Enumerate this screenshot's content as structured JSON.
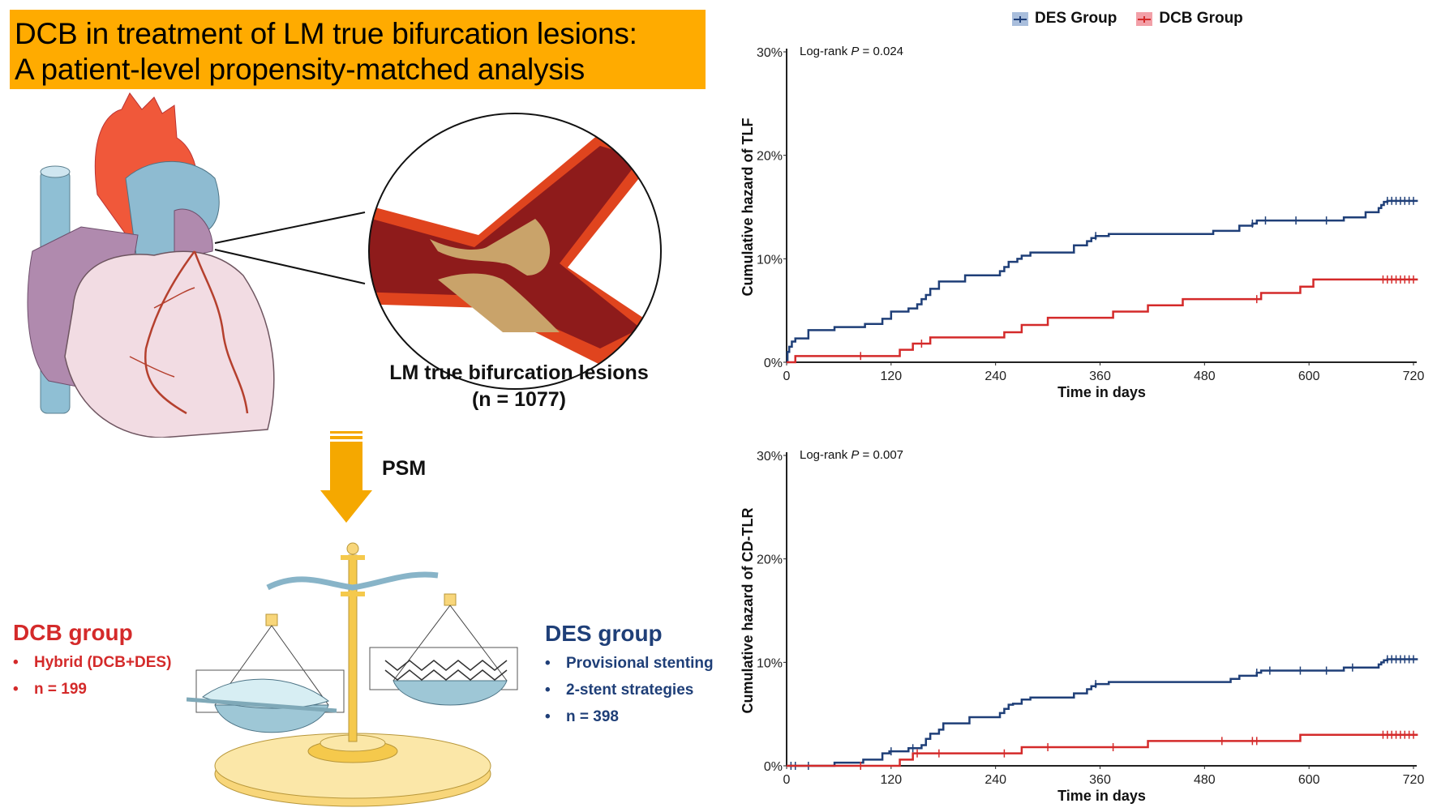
{
  "title": {
    "line1": "DCB in treatment of LM true bifurcation lesions:",
    "line2": "A patient-level propensity-matched analysis"
  },
  "colors": {
    "title_bg": "#FFAB00",
    "des": "#1F3F78",
    "dcb": "#D42A2A",
    "arrow": "#F5A800"
  },
  "illustration": {
    "lesion_label": "LM true bifurcation lesions",
    "lesion_count": "(n = 1077)",
    "arrow_label": "PSM",
    "icons": [
      "heart-icon",
      "artery-bifurcation-icon",
      "down-arrow-icon",
      "balance-scale-icon",
      "balloon-icon",
      "stent-icon"
    ]
  },
  "dcb_group": {
    "title": "DCB group",
    "items": [
      "Hybrid (DCB+DES)",
      "n = 199"
    ]
  },
  "des_group": {
    "title": "DES group",
    "items": [
      "Provisional stenting",
      "2-stent strategies",
      "n = 398"
    ]
  },
  "legend": {
    "items": [
      {
        "label": "DES Group",
        "color": "#1F3F78",
        "fill": "#A9BEDC"
      },
      {
        "label": "DCB Group",
        "color": "#D42A2A",
        "fill": "#F2A0A8"
      }
    ],
    "placement": "top-right"
  },
  "chart_data": [
    {
      "type": "line",
      "subtype": "step",
      "title": "",
      "annotation": {
        "prefix": "Log-rank ",
        "p_label": "P",
        "suffix": " = 0.024"
      },
      "xlabel": "Time in days",
      "ylabel": "Cumulative hazard of TLF",
      "xlim": [
        0,
        730
      ],
      "ylim": [
        0,
        30
      ],
      "xticks": [
        0,
        120,
        240,
        360,
        480,
        600,
        720
      ],
      "yticks": [
        0,
        10,
        20,
        30
      ],
      "ytick_labels": [
        "0%",
        "10%",
        "20%",
        "30%"
      ],
      "grid": false,
      "series": [
        {
          "name": "DES Group",
          "color": "#1F3F78",
          "x": [
            0,
            1,
            3,
            6,
            10,
            25,
            55,
            90,
            110,
            120,
            140,
            150,
            155,
            160,
            165,
            175,
            205,
            245,
            250,
            255,
            265,
            270,
            280,
            330,
            345,
            350,
            355,
            370,
            490,
            520,
            535,
            540,
            640,
            665,
            680,
            683,
            686,
            690,
            725
          ],
          "y": [
            0,
            1.0,
            1.5,
            2.0,
            2.3,
            3.1,
            3.4,
            3.7,
            4.2,
            4.9,
            5.2,
            5.6,
            6.1,
            6.5,
            7.1,
            7.8,
            8.4,
            8.8,
            9.2,
            9.7,
            10.0,
            10.3,
            10.6,
            11.3,
            11.7,
            12.0,
            12.2,
            12.4,
            12.7,
            13.2,
            13.4,
            13.7,
            14.0,
            14.5,
            14.9,
            15.2,
            15.5,
            15.6,
            15.6
          ],
          "censor_x": [
            355,
            535,
            550,
            585,
            620,
            690,
            695,
            700,
            705,
            710,
            715,
            720
          ]
        },
        {
          "name": "DCB Group",
          "color": "#D42A2A",
          "x": [
            0,
            10,
            130,
            145,
            165,
            250,
            270,
            300,
            375,
            415,
            455,
            545,
            590,
            605,
            725
          ],
          "y": [
            0,
            0.6,
            1.2,
            1.8,
            2.4,
            2.9,
            3.6,
            4.3,
            4.9,
            5.5,
            6.1,
            6.7,
            7.3,
            8.0,
            8.0
          ],
          "censor_x": [
            85,
            155,
            540,
            685,
            690,
            695,
            700,
            705,
            710,
            715,
            720
          ]
        }
      ]
    },
    {
      "type": "line",
      "subtype": "step",
      "title": "",
      "annotation": {
        "prefix": "Log-rank ",
        "p_label": "P",
        "suffix": " = 0.007"
      },
      "xlabel": "Time in days",
      "ylabel": "Cumulative hazard of CD-TLR",
      "xlim": [
        0,
        730
      ],
      "ylim": [
        0,
        30
      ],
      "xticks": [
        0,
        120,
        240,
        360,
        480,
        600,
        720
      ],
      "yticks": [
        0,
        10,
        20,
        30
      ],
      "ytick_labels": [
        "0%",
        "10%",
        "20%",
        "30%"
      ],
      "grid": false,
      "series": [
        {
          "name": "DES Group",
          "color": "#1F3F78",
          "x": [
            0,
            55,
            88,
            110,
            118,
            140,
            155,
            160,
            165,
            175,
            180,
            210,
            245,
            250,
            255,
            260,
            270,
            280,
            330,
            345,
            350,
            355,
            370,
            510,
            520,
            540,
            545,
            640,
            680,
            683,
            686,
            690,
            725
          ],
          "y": [
            0,
            0.3,
            0.6,
            1.2,
            1.4,
            1.7,
            2.0,
            2.6,
            3.1,
            3.5,
            4.1,
            4.7,
            5.1,
            5.5,
            5.9,
            6.0,
            6.4,
            6.6,
            7.0,
            7.4,
            7.7,
            7.9,
            8.1,
            8.4,
            8.7,
            9.0,
            9.2,
            9.5,
            9.8,
            10.0,
            10.2,
            10.3,
            10.3
          ],
          "censor_x": [
            5,
            10,
            25,
            120,
            145,
            355,
            540,
            555,
            590,
            620,
            650,
            690,
            695,
            700,
            705,
            710,
            715,
            720
          ]
        },
        {
          "name": "DCB Group",
          "color": "#D42A2A",
          "x": [
            0,
            130,
            145,
            270,
            415,
            590,
            725
          ],
          "y": [
            0,
            0.6,
            1.2,
            1.8,
            2.4,
            3.0,
            3.0
          ],
          "censor_x": [
            85,
            150,
            175,
            250,
            300,
            375,
            500,
            535,
            540,
            685,
            690,
            695,
            700,
            705,
            710,
            715,
            720
          ]
        }
      ]
    }
  ]
}
